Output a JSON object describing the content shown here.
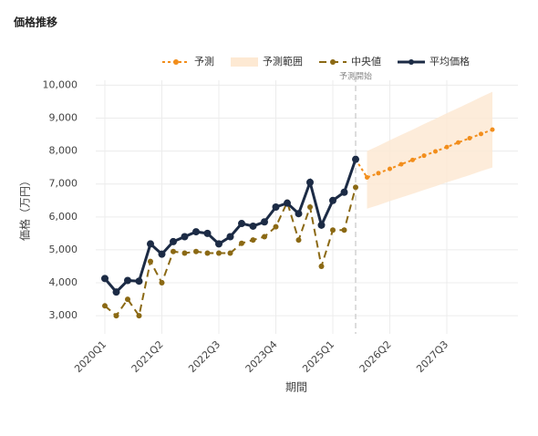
{
  "chart_data": {
    "type": "line",
    "title": "価格推移",
    "x_label": "期間",
    "y_label": "価格（万円）",
    "annotation": "予測開始",
    "annotation_index": 22,
    "categories": [
      "2020Q1",
      null,
      null,
      null,
      null,
      "2021Q2",
      null,
      null,
      null,
      null,
      "2022Q3",
      null,
      null,
      null,
      null,
      "2023Q4",
      null,
      null,
      null,
      null,
      "2025Q1",
      null,
      null,
      null,
      null,
      "2026Q2",
      null,
      null,
      null,
      null,
      "2027Q3",
      null,
      null,
      null,
      null
    ],
    "ylim": [
      2450,
      10150
    ],
    "yticks": [
      {
        "value": 3000,
        "label": "3,000"
      },
      {
        "value": 4000,
        "label": "4,000"
      },
      {
        "value": 5000,
        "label": "5,000"
      },
      {
        "value": 6000,
        "label": "6,000"
      },
      {
        "value": 7000,
        "label": "7,000"
      },
      {
        "value": 8000,
        "label": "8,000"
      },
      {
        "value": 9000,
        "label": "9,000"
      },
      {
        "value": 10000,
        "label": "10,000"
      }
    ],
    "grid": true,
    "band": {
      "name": "予測範囲",
      "color": "#fde9d3",
      "lower": [
        null,
        null,
        null,
        null,
        null,
        null,
        null,
        null,
        null,
        null,
        null,
        null,
        null,
        null,
        null,
        null,
        null,
        null,
        null,
        null,
        null,
        null,
        null,
        6250,
        6360,
        6480,
        6590,
        6700,
        6820,
        6930,
        7050,
        7160,
        7270,
        7390,
        7500
      ],
      "upper": [
        null,
        null,
        null,
        null,
        null,
        null,
        null,
        null,
        null,
        null,
        null,
        null,
        null,
        null,
        null,
        null,
        null,
        null,
        null,
        null,
        null,
        null,
        null,
        8000,
        8160,
        8330,
        8490,
        8650,
        8820,
        8980,
        9150,
        9310,
        9470,
        9640,
        9800
      ]
    },
    "series": [
      {
        "name": "予測",
        "color": "#f28e1c",
        "style": "dotted",
        "values": [
          null,
          null,
          null,
          null,
          null,
          null,
          null,
          null,
          null,
          null,
          null,
          null,
          null,
          null,
          null,
          null,
          null,
          null,
          null,
          null,
          null,
          null,
          7750,
          7200,
          7330,
          7460,
          7600,
          7730,
          7860,
          7990,
          8120,
          8260,
          8390,
          8520,
          8650
        ]
      },
      {
        "name": "中央値",
        "color": "#8b6914",
        "style": "dashed",
        "values": [
          3300,
          3000,
          3500,
          3000,
          4650,
          4000,
          4950,
          4900,
          4950,
          4900,
          4900,
          4900,
          5200,
          5300,
          5400,
          5700,
          6450,
          5300,
          6300,
          4500,
          5600,
          5600,
          6900,
          null,
          null,
          null,
          null,
          null,
          null,
          null,
          null,
          null,
          null,
          null,
          null
        ]
      },
      {
        "name": "平均価格",
        "color": "#1c2b45",
        "style": "solid",
        "values": [
          4130,
          3720,
          4070,
          4050,
          5180,
          4870,
          5250,
          5400,
          5550,
          5500,
          5180,
          5400,
          5800,
          5720,
          5850,
          6300,
          6420,
          6100,
          7050,
          5750,
          6500,
          6750,
          7750,
          null,
          null,
          null,
          null,
          null,
          null,
          null,
          null,
          null,
          null,
          null,
          null
        ]
      }
    ]
  }
}
